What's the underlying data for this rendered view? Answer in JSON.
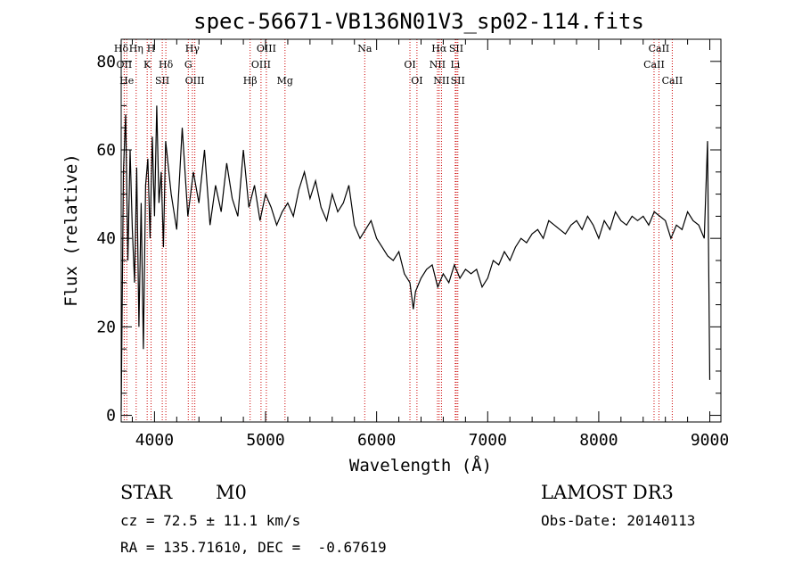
{
  "chart_data": {
    "type": "line",
    "title": "spec-56671-VB136N01V3_sp02-114.fits",
    "xlabel": "Wavelength (Å)",
    "ylabel": "Flux (relative)",
    "xlim": [
      3700,
      9100
    ],
    "ylim": [
      -1.5,
      85
    ],
    "x_ticks": [
      4000,
      5000,
      6000,
      7000,
      8000,
      9000
    ],
    "x_tick_labels": [
      "4000",
      "5000",
      "6000",
      "7000",
      "8000",
      "9000"
    ],
    "y_ticks": [
      0,
      20,
      40,
      60,
      80
    ],
    "y_tick_labels": [
      "0",
      "20",
      "40",
      "60",
      "80"
    ],
    "grid": false,
    "series": [
      {
        "name": "flux",
        "x": [
          3700,
          3720,
          3740,
          3760,
          3780,
          3800,
          3820,
          3840,
          3860,
          3880,
          3900,
          3920,
          3940,
          3960,
          3980,
          4000,
          4020,
          4040,
          4060,
          4080,
          4100,
          4150,
          4200,
          4250,
          4300,
          4350,
          4400,
          4450,
          4500,
          4550,
          4600,
          4650,
          4700,
          4750,
          4800,
          4850,
          4900,
          4950,
          5000,
          5050,
          5100,
          5150,
          5200,
          5250,
          5300,
          5350,
          5400,
          5450,
          5500,
          5550,
          5600,
          5650,
          5700,
          5750,
          5800,
          5850,
          5900,
          5950,
          6000,
          6050,
          6100,
          6150,
          6200,
          6250,
          6300,
          6330,
          6350,
          6400,
          6450,
          6500,
          6550,
          6600,
          6650,
          6700,
          6750,
          6800,
          6850,
          6900,
          6950,
          7000,
          7050,
          7100,
          7150,
          7200,
          7250,
          7300,
          7350,
          7400,
          7450,
          7500,
          7550,
          7600,
          7650,
          7700,
          7750,
          7800,
          7850,
          7900,
          7950,
          8000,
          8050,
          8100,
          8150,
          8200,
          8250,
          8300,
          8350,
          8400,
          8450,
          8500,
          8550,
          8600,
          8650,
          8700,
          8750,
          8800,
          8850,
          8900,
          8950,
          8980,
          9000
        ],
        "values": [
          1,
          55,
          68,
          35,
          60,
          42,
          30,
          56,
          20,
          48,
          15,
          52,
          58,
          40,
          63,
          45,
          70,
          48,
          55,
          38,
          62,
          50,
          42,
          65,
          45,
          55,
          48,
          60,
          43,
          52,
          46,
          57,
          49,
          45,
          60,
          47,
          52,
          44,
          50,
          47,
          43,
          46,
          48,
          45,
          51,
          55,
          49,
          53,
          47,
          44,
          50,
          46,
          48,
          52,
          43,
          40,
          42,
          44,
          40,
          38,
          36,
          35,
          37,
          32,
          30,
          24,
          28,
          31,
          33,
          34,
          29,
          32,
          30,
          34,
          31,
          33,
          32,
          33,
          29,
          31,
          35,
          34,
          37,
          35,
          38,
          40,
          39,
          41,
          42,
          40,
          44,
          43,
          42,
          41,
          43,
          44,
          42,
          45,
          43,
          40,
          44,
          42,
          46,
          44,
          43,
          45,
          44,
          45,
          43,
          46,
          45,
          44,
          40,
          43,
          42,
          46,
          44,
          43,
          40,
          62,
          8
        ]
      }
    ],
    "lines": [
      {
        "label": "Hδ",
        "x": 3700
      },
      {
        "label": "OII",
        "x": 3727
      },
      {
        "label": "He",
        "x": 3750
      },
      {
        "label": "Hη",
        "x": 3835
      },
      {
        "label": "K",
        "x": 3934
      },
      {
        "label": "SII",
        "x": 4070
      },
      {
        "label": "H",
        "x": 3969
      },
      {
        "label": "Hδ",
        "x": 4102
      },
      {
        "label": "OIII",
        "x": 4363
      },
      {
        "label": "Hγ",
        "x": 4341
      },
      {
        "label": "G",
        "x": 4304
      },
      {
        "label": "Hβ",
        "x": 4861
      },
      {
        "label": "OIII",
        "x": 5007
      },
      {
        "label": "OIII",
        "x": 4959
      },
      {
        "label": "Mg",
        "x": 5175
      },
      {
        "label": "Na",
        "x": 5893
      },
      {
        "label": "OI",
        "x": 6300
      },
      {
        "label": "OI",
        "x": 6363
      },
      {
        "label": "Hα",
        "x": 6563
      },
      {
        "label": "NII",
        "x": 6548
      },
      {
        "label": "NII",
        "x": 6584
      },
      {
        "label": "SII",
        "x": 6717
      },
      {
        "label": "Li",
        "x": 6708
      },
      {
        "label": "SII",
        "x": 6731
      },
      {
        "label": "CaII",
        "x": 8542
      },
      {
        "label": "CaII",
        "x": 8498
      },
      {
        "label": "CaII",
        "x": 8662
      }
    ]
  },
  "info": {
    "class": "STAR",
    "subclass": "M0",
    "survey": "LAMOST DR3",
    "cz": "cz = 72.5 ± 11.1 km/s",
    "obs_date": "Obs-Date: 20140113",
    "radec": "RA = 135.71610, DEC =  -0.67619"
  },
  "colors": {
    "line_marker": "#cc0000",
    "spectrum": "#000000"
  }
}
